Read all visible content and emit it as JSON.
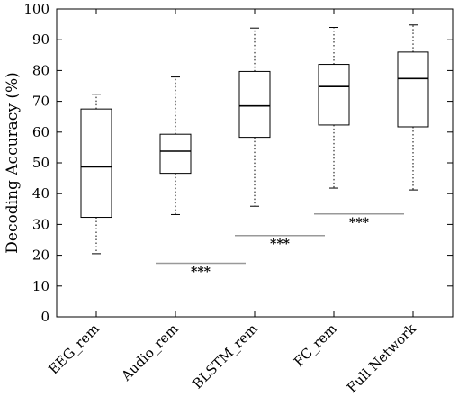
{
  "chart_data": {
    "type": "box",
    "title": "",
    "xlabel": "",
    "ylabel": "Decoding Accuracy (%)",
    "ylim": [
      0,
      100
    ],
    "yticks": [
      0,
      10,
      20,
      30,
      40,
      50,
      60,
      70,
      80,
      90,
      100
    ],
    "grid": false,
    "categories": [
      "EEG_rem",
      "Audio_rem",
      "BLSTM_rem",
      "FC_rem",
      "Full Network"
    ],
    "boxes": [
      {
        "whisker_low": 20.5,
        "q1": 32.3,
        "median": 48.7,
        "q3": 67.5,
        "whisker_high": 72.3
      },
      {
        "whisker_low": 33.2,
        "q1": 46.6,
        "median": 53.8,
        "q3": 59.3,
        "whisker_high": 77.9
      },
      {
        "whisker_low": 35.9,
        "q1": 58.3,
        "median": 68.5,
        "q3": 79.7,
        "whisker_high": 93.8
      },
      {
        "whisker_low": 41.8,
        "q1": 62.3,
        "median": 74.8,
        "q3": 82.0,
        "whisker_high": 94.0
      },
      {
        "whisker_low": 41.2,
        "q1": 61.7,
        "median": 77.4,
        "q3": 86.0,
        "whisker_high": 94.8
      }
    ],
    "significance": [
      {
        "between": [
          1,
          2
        ],
        "y": 17.4,
        "label": "***"
      },
      {
        "between": [
          2,
          3
        ],
        "y": 26.4,
        "label": "***"
      },
      {
        "between": [
          3,
          4
        ],
        "y": 33.4,
        "label": "***"
      }
    ]
  }
}
